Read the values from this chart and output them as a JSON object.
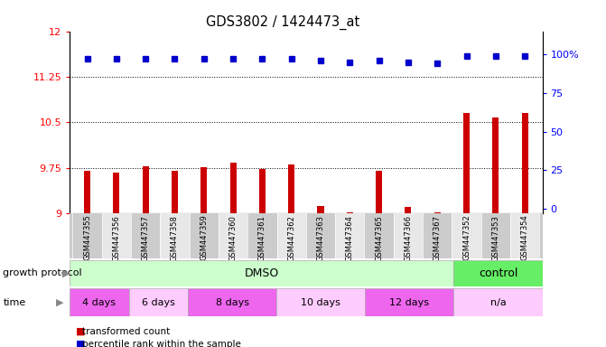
{
  "title": "GDS3802 / 1424473_at",
  "samples": [
    "GSM447355",
    "GSM447356",
    "GSM447357",
    "GSM447358",
    "GSM447359",
    "GSM447360",
    "GSM447361",
    "GSM447362",
    "GSM447363",
    "GSM447364",
    "GSM447365",
    "GSM447366",
    "GSM447367",
    "GSM447352",
    "GSM447353",
    "GSM447354"
  ],
  "bar_values": [
    9.7,
    9.67,
    9.78,
    9.7,
    9.76,
    9.84,
    9.73,
    9.81,
    9.12,
    9.02,
    9.7,
    9.1,
    9.01,
    10.65,
    10.58,
    10.65
  ],
  "dot_values": [
    97,
    97,
    97,
    97,
    97,
    97,
    97,
    97,
    96,
    95,
    96,
    95,
    94,
    99,
    99,
    99
  ],
  "ylim": [
    9,
    12
  ],
  "y_ticks": [
    9,
    9.75,
    10.5,
    11.25,
    12
  ],
  "y2_ticks": [
    0,
    25,
    50,
    75,
    100
  ],
  "dotted_lines": [
    9.75,
    10.5,
    11.25
  ],
  "bar_color": "#cc0000",
  "dot_color": "#0000cc",
  "growth_protocol_label": "growth protocol",
  "time_label": "time",
  "dmso_color": "#ccffcc",
  "control_color": "#66ee66",
  "time_color_dark": "#ee66ee",
  "time_color_light": "#ffccff",
  "legend_bar_label": "transformed count",
  "legend_dot_label": "percentile rank within the sample"
}
